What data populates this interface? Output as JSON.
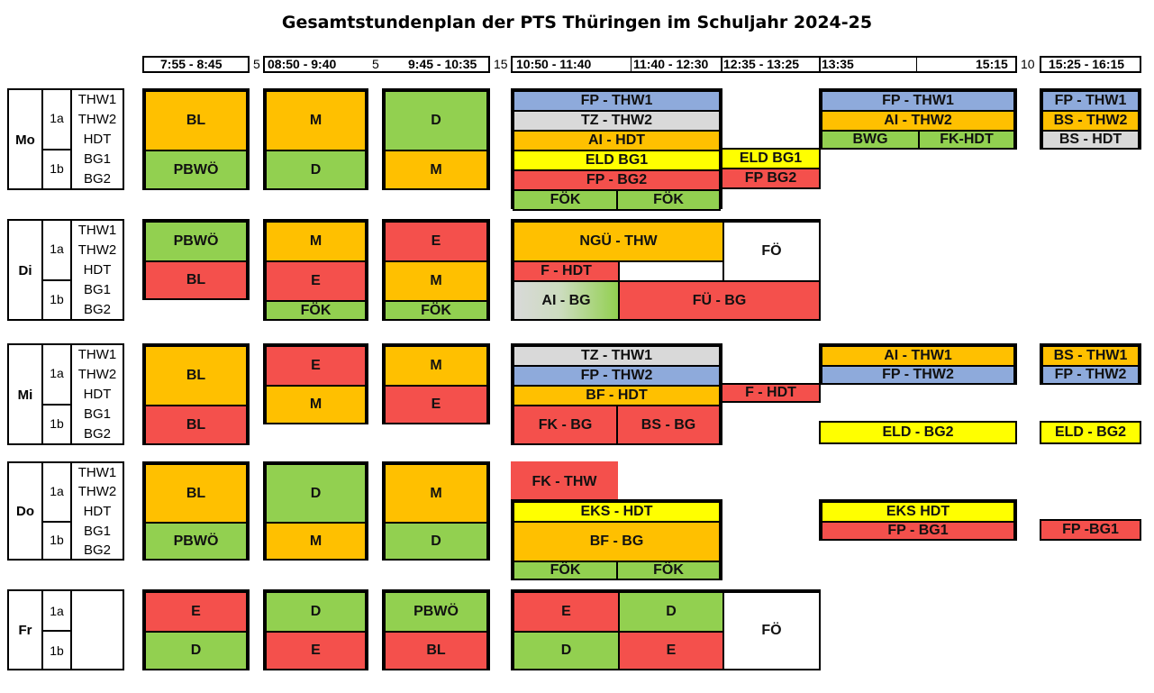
{
  "title": "Gesamtstundenplan der PTS Thüringen im Schuljahr 2024-25",
  "colors": {
    "orange": "#FFC000",
    "green": "#92D050",
    "red": "#F4504C",
    "blue": "#8EAADB",
    "gray": "#D9D9D9",
    "yellow": "#FFFF00",
    "white": "#FFFFFF"
  },
  "header": {
    "slot1": "7:55 - 8:45",
    "gap1": "5",
    "slot2": "08:50 - 9:40",
    "gap2": "5",
    "slot3": "9:45 - 10:35",
    "gap3": "15",
    "slot4": "10:50 - 11:40",
    "slot5": "11:40 - 12:30",
    "slot6": "12:35 - 13:25",
    "slot7_start": "13:35",
    "slot7_end": "15:15",
    "gap4": "10",
    "slot8": "15:25 - 16:15"
  },
  "days": {
    "mo": "Mo",
    "di": "Di",
    "mi": "Mi",
    "do": "Do",
    "fr": "Fr"
  },
  "groups": {
    "g1a": "1a",
    "g1b": "1b"
  },
  "subgroups": {
    "thw1": "THW1",
    "thw2": "THW2",
    "hdt": "HDT",
    "bg1": "BG1",
    "bg2": "BG2"
  },
  "lessons": {
    "mo": {
      "p1_a": "BL",
      "p1_b": "PBWÖ",
      "p2_a": "M",
      "p2_b": "D",
      "p3_a": "D",
      "p3_b": "M",
      "b1": "FP - THW1",
      "b2": "TZ - THW2",
      "b3": "AI - HDT",
      "b4": "ELD BG1",
      "b5": "FP - BG2",
      "b6": "FÖK",
      "b7": "FÖK",
      "s6_1": "ELD BG1",
      "s6_2": "FP BG2",
      "a1": "FP - THW1",
      "a2": "AI - THW2",
      "a3": "BWG",
      "a4": "FK-HDT",
      "l1": "FP - THW1",
      "l2": "BS - THW2",
      "l3": "BS - HDT"
    },
    "di": {
      "p1_a": "PBWÖ",
      "p1_b": "BL",
      "p2_a": "M",
      "p2_b": "E",
      "p2_c": "FÖK",
      "p3_a": "E",
      "p3_b": "M",
      "p3_c": "FÖK",
      "b1": "NGÜ - THW",
      "b2": "F - HDT",
      "b3": "AI - BG",
      "b4": "FÜ - BG",
      "b5": "FÖ"
    },
    "mi": {
      "p1_a": "BL",
      "p1_b": "BL",
      "p2_a": "E",
      "p2_b": "M",
      "p3_a": "M",
      "p3_b": "E",
      "b1": "TZ - THW1",
      "b2": "FP - THW2",
      "b3": "BF - HDT",
      "b4": "FK - BG",
      "b5": "BS - BG",
      "s6_1": "F - HDT",
      "a1": "AI - THW1",
      "a2": "FP - THW2",
      "a3": "ELD - BG2",
      "l1": "BS - THW1",
      "l2": "FP - THW2",
      "l3": "ELD - BG2"
    },
    "do": {
      "p1_a": "BL",
      "p1_b": "PBWÖ",
      "p2_a": "D",
      "p2_b": "M",
      "p3_a": "M",
      "p3_b": "D",
      "b1": "FK - THW",
      "b2": "EKS - HDT",
      "b3": "BF - BG",
      "b4": "FÖK",
      "b5": "FÖK",
      "a1": "EKS HDT",
      "a2": "FP - BG1",
      "l1": "FP -BG1"
    },
    "fr": {
      "p1_a": "E",
      "p1_b": "D",
      "p2_a": "D",
      "p2_b": "E",
      "p3_a": "PBWÖ",
      "p3_b": "BL",
      "b1": "E",
      "b2": "D",
      "b3": "D",
      "b4": "E",
      "b5": "FÖ"
    }
  }
}
